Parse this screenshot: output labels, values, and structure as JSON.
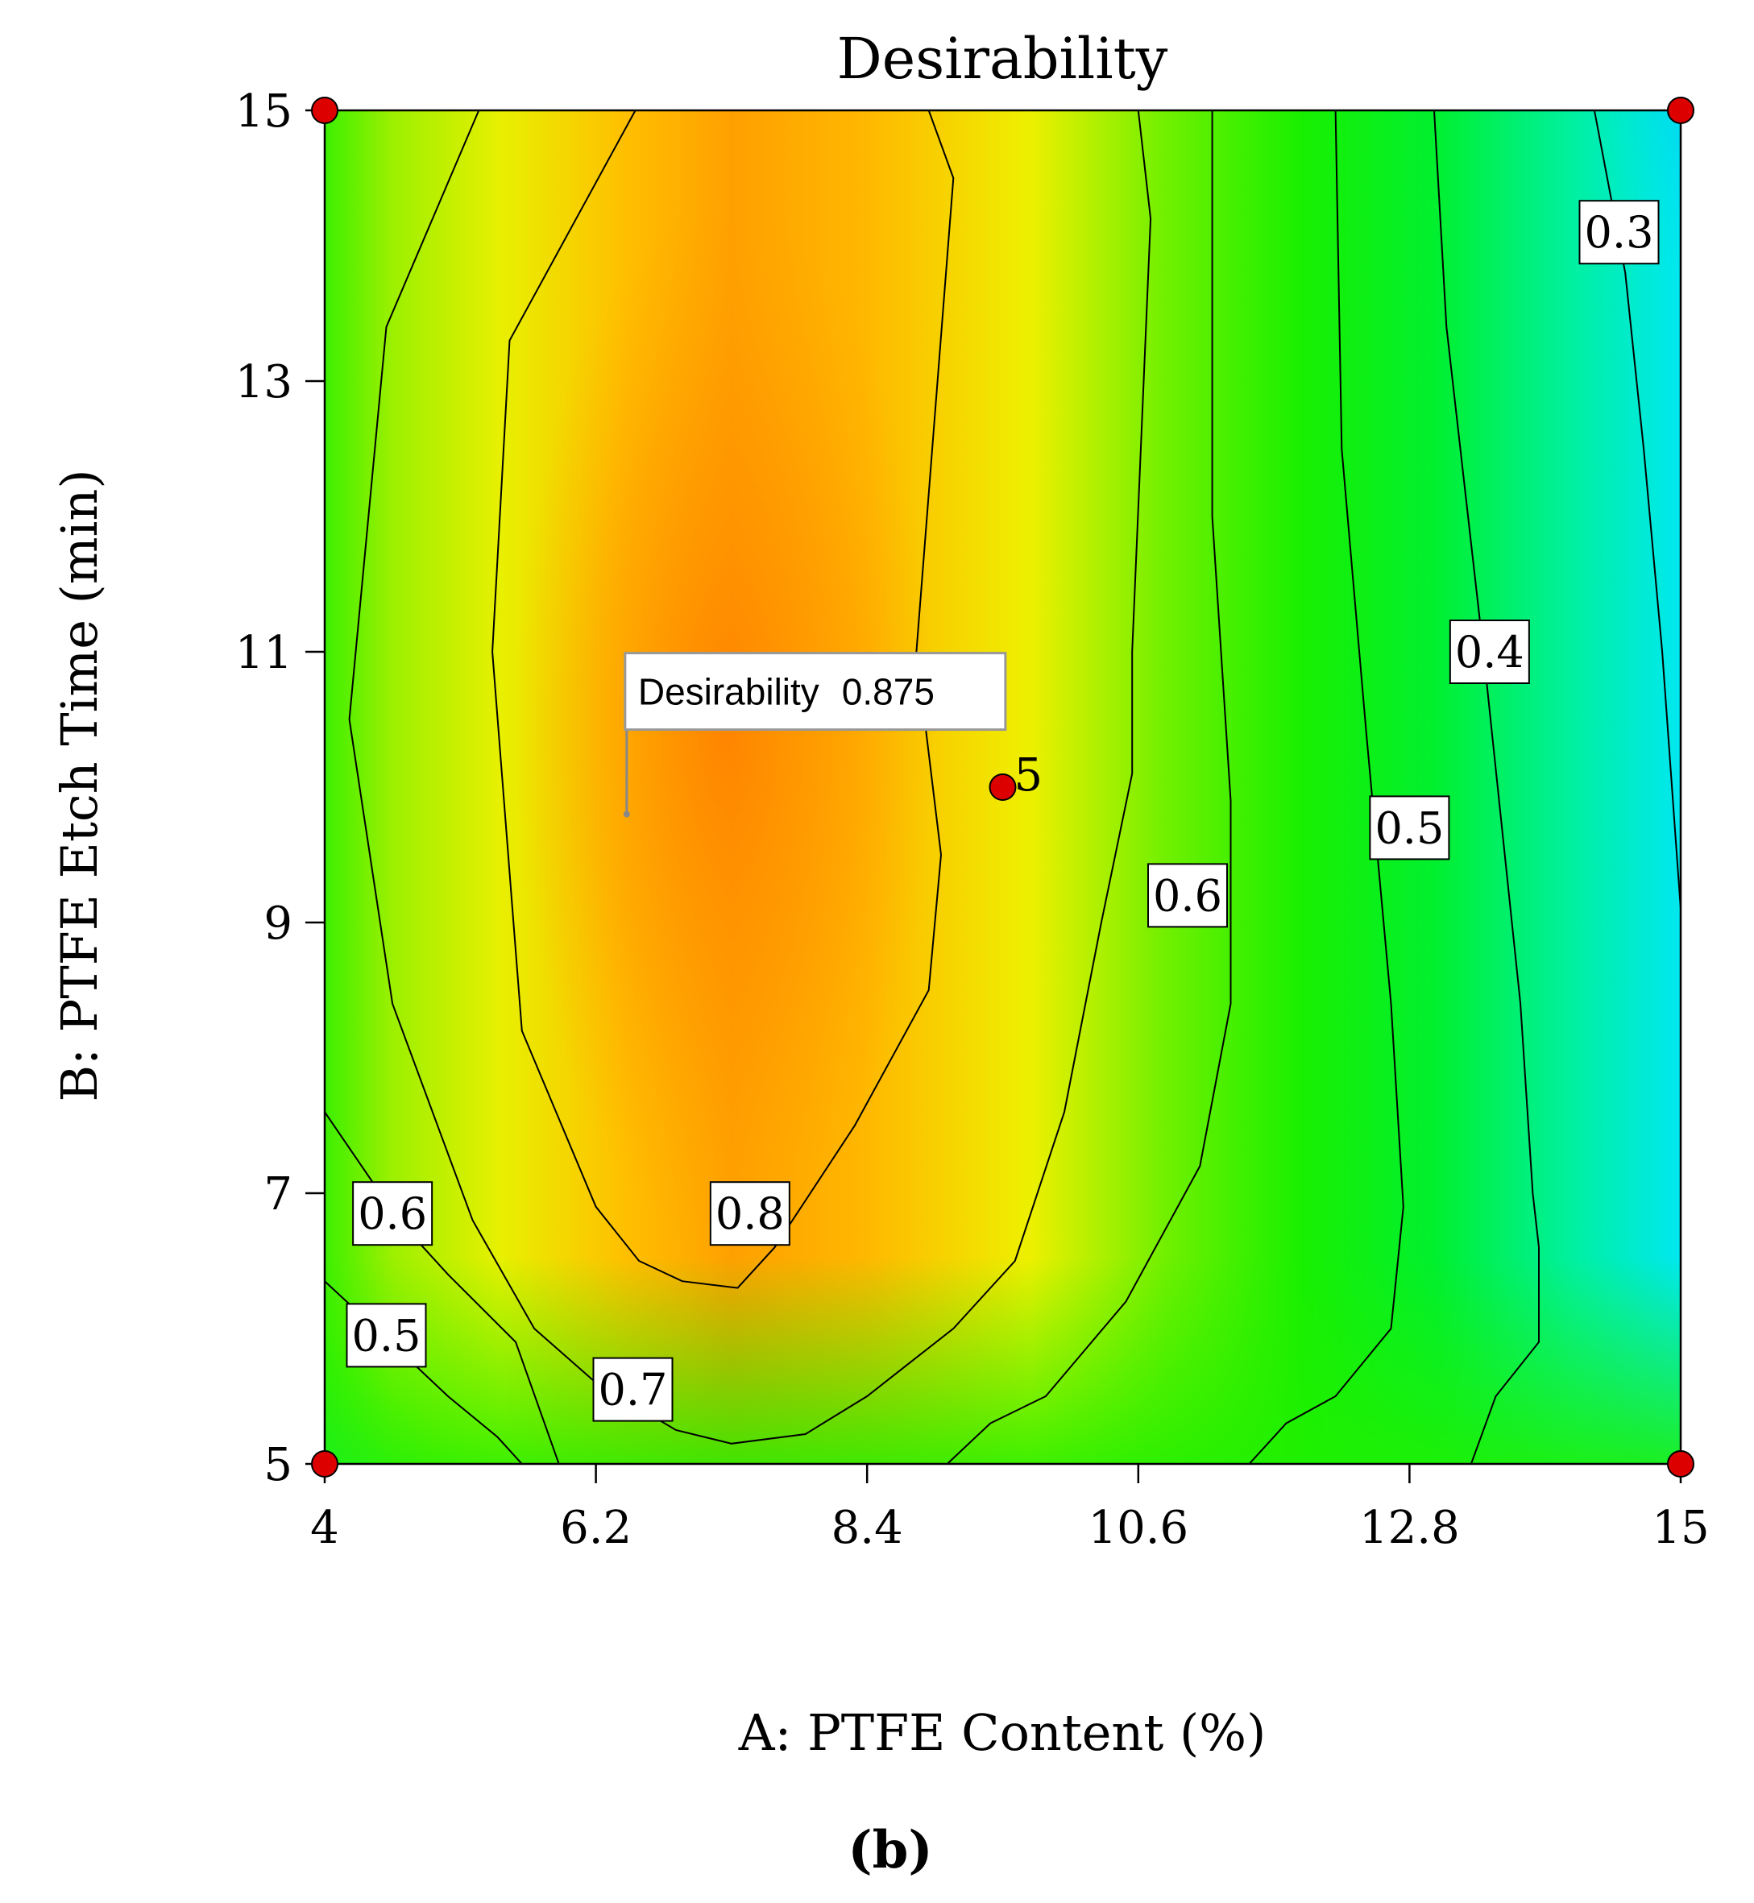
{
  "chart_data": {
    "type": "contour",
    "title": "Desirability",
    "xlabel": "A: PTFE Content (%)",
    "ylabel": "B: PTFE Etch Time (min)",
    "panel_label": "b",
    "xlim": [
      4,
      15
    ],
    "ylim": [
      5,
      15
    ],
    "x_ticks": [
      "4",
      "6.2",
      "8.4",
      "10.6",
      "12.8",
      "15"
    ],
    "y_ticks": [
      "5",
      "7",
      "9",
      "11",
      "13",
      "15"
    ],
    "x_tick_values": [
      4,
      6.2,
      8.4,
      10.6,
      12.8,
      15
    ],
    "y_tick_values": [
      5,
      7,
      9,
      11,
      13,
      15
    ],
    "contour_labels": [
      "0.3",
      "0.4",
      "0.5",
      "0.6",
      "0.8",
      "0.7",
      "0.6",
      "0.5"
    ],
    "contours": [
      {
        "level": 0.8,
        "points": [
          [
            6.52,
            15
          ],
          [
            5.5,
            13.3
          ],
          [
            5.36,
            11.0
          ],
          [
            5.6,
            8.2
          ],
          [
            6.2,
            6.9
          ],
          [
            6.55,
            6.5
          ],
          [
            6.9,
            6.35
          ],
          [
            7.35,
            6.3
          ],
          [
            7.65,
            6.6
          ],
          [
            8.3,
            7.5
          ],
          [
            8.9,
            8.5
          ],
          [
            9.0,
            9.5
          ],
          [
            8.8,
            11
          ],
          [
            9.1,
            14.5
          ],
          [
            8.9,
            15
          ]
        ]
      },
      {
        "level": 0.7,
        "points": [
          [
            5.25,
            15
          ],
          [
            4.5,
            13.4
          ],
          [
            4.2,
            10.5
          ],
          [
            4.55,
            8.4
          ],
          [
            5.2,
            6.8
          ],
          [
            5.7,
            6.0
          ],
          [
            6.2,
            5.6
          ],
          [
            6.85,
            5.25
          ],
          [
            7.3,
            5.15
          ],
          [
            7.9,
            5.22
          ],
          [
            8.4,
            5.5
          ],
          [
            9.1,
            6.0
          ],
          [
            9.6,
            6.5
          ],
          [
            10.0,
            7.6
          ],
          [
            10.3,
            9.0
          ],
          [
            10.55,
            10.1
          ],
          [
            10.55,
            11.0
          ],
          [
            10.7,
            14.2
          ],
          [
            10.6,
            15
          ]
        ]
      },
      {
        "level": 0.6,
        "points": [
          [
            11.2,
            15
          ],
          [
            11.2,
            12
          ],
          [
            11.35,
            9.9
          ],
          [
            11.35,
            8.4
          ],
          [
            11.1,
            7.2
          ],
          [
            10.5,
            6.2
          ],
          [
            9.85,
            5.5
          ],
          [
            9.4,
            5.3
          ],
          [
            9.05,
            5.0
          ]
        ]
      },
      {
        "level": 0.5,
        "points": [
          [
            12.2,
            15
          ],
          [
            12.25,
            12.5
          ],
          [
            12.45,
            10.4
          ],
          [
            12.65,
            8.4
          ],
          [
            12.75,
            6.9
          ],
          [
            12.65,
            6.0
          ],
          [
            12.2,
            5.5
          ],
          [
            11.8,
            5.3
          ],
          [
            11.5,
            5.0
          ]
        ]
      },
      {
        "level": 0.4,
        "points": [
          [
            13.0,
            15
          ],
          [
            13.1,
            13.4
          ],
          [
            13.4,
            11.0
          ],
          [
            13.7,
            8.4
          ],
          [
            13.8,
            7.0
          ],
          [
            13.85,
            6.6
          ],
          [
            13.85,
            5.9
          ],
          [
            13.5,
            5.5
          ],
          [
            13.3,
            5.0
          ]
        ]
      },
      {
        "level": 0.3,
        "points": [
          [
            14.3,
            15
          ],
          [
            14.55,
            13.8
          ],
          [
            14.7,
            12.5
          ],
          [
            14.85,
            11.0
          ],
          [
            15.0,
            9.1
          ]
        ]
      },
      {
        "level": 0.6,
        "points": [
          [
            4.0,
            7.6
          ],
          [
            4.6,
            6.8
          ],
          [
            5.0,
            6.4
          ],
          [
            5.55,
            5.9
          ],
          [
            5.9,
            5.0
          ]
        ]
      },
      {
        "level": 0.5,
        "points": [
          [
            4.0,
            6.35
          ],
          [
            4.65,
            5.8
          ],
          [
            5.0,
            5.5
          ],
          [
            5.4,
            5.2
          ],
          [
            5.6,
            5.0
          ]
        ]
      }
    ],
    "design_points": [
      {
        "x": 4,
        "y": 15,
        "label": ""
      },
      {
        "x": 15,
        "y": 15,
        "label": ""
      },
      {
        "x": 4,
        "y": 5,
        "label": ""
      },
      {
        "x": 15,
        "y": 5,
        "label": ""
      },
      {
        "x": 9.5,
        "y": 10,
        "label": "5"
      }
    ],
    "flag": {
      "x": 6.45,
      "y": 9.8,
      "label": "Desirability",
      "value": "0.875"
    }
  },
  "colors": {
    "optimum": "#ff8800",
    "high": "#ffb000",
    "mid": "#e8f000",
    "green": "#1ef000",
    "cyan": "#00f0e0",
    "blue": "#0050e0",
    "point": "#dd0000"
  }
}
